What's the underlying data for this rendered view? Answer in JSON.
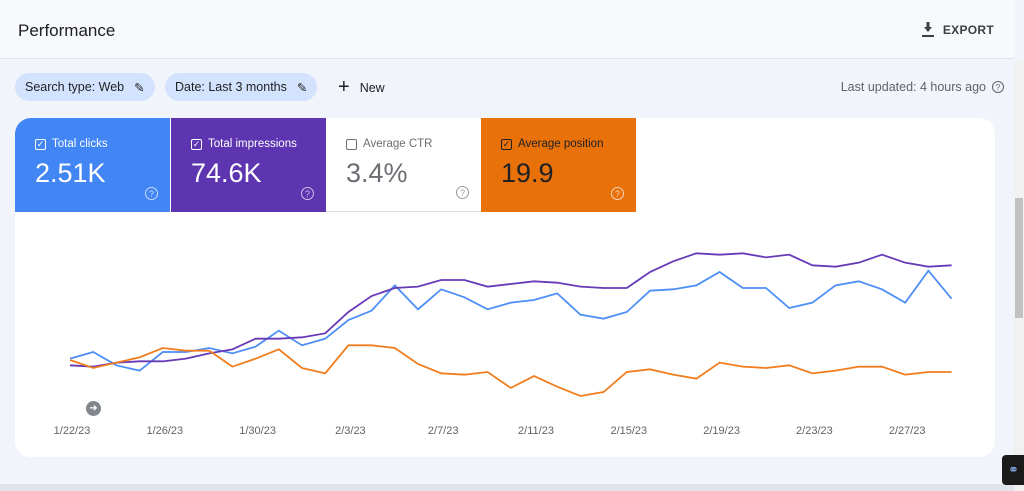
{
  "header": {
    "title": "Performance",
    "export_label": "EXPORT",
    "export_icon": "download-icon"
  },
  "filters": {
    "search_type": "Search type: Web",
    "date": "Date: Last 3 months",
    "new_label": "New",
    "last_updated": "Last updated: 4 hours ago"
  },
  "metrics": [
    {
      "label": "Total clicks",
      "value": "2.51K",
      "checked": true,
      "color": "#4285f4"
    },
    {
      "label": "Total impressions",
      "value": "74.6K",
      "checked": true,
      "color": "#5e35b1"
    },
    {
      "label": "Average CTR",
      "value": "3.4%",
      "checked": false,
      "color": "#ffffff"
    },
    {
      "label": "Average position",
      "value": "19.9",
      "checked": true,
      "color": "#e8710a"
    }
  ],
  "chart_data": {
    "type": "line",
    "x_start": "1/22/23",
    "x_end": "3/1/23",
    "tick_labels": [
      "1/22/23",
      "1/26/23",
      "1/30/23",
      "2/3/23",
      "2/7/23",
      "2/11/23",
      "2/15/23",
      "2/19/23",
      "2/23/23",
      "2/27/23"
    ],
    "y_axis_labels": "none shown (relative scale per series)",
    "grid": false,
    "series": [
      {
        "metric": "Total clicks",
        "color": "#4e8ff7",
        "values": [
          36,
          41,
          31,
          27,
          41,
          41,
          44,
          40,
          45,
          57,
          46,
          51,
          65,
          72,
          91,
          73,
          88,
          82,
          73,
          78,
          80,
          85,
          69,
          66,
          71,
          87,
          88,
          91,
          101,
          89,
          89,
          74,
          78,
          91,
          94,
          88,
          78,
          102,
          81
        ]
      },
      {
        "metric": "Total impressions",
        "color": "#673ab7",
        "values": [
          31,
          30,
          33,
          34,
          34,
          36,
          40,
          43,
          51,
          51,
          52,
          55,
          71,
          83,
          89,
          90,
          95,
          95,
          90,
          92,
          94,
          93,
          90,
          89,
          89,
          101,
          109,
          115,
          114,
          115,
          112,
          114,
          106,
          105,
          108,
          114,
          108,
          105,
          106
        ]
      },
      {
        "metric": "Average position",
        "color": "#f07e1f",
        "values": [
          35,
          29,
          33,
          37,
          44,
          42,
          42,
          30,
          36,
          43,
          29,
          25,
          46,
          46,
          44,
          32,
          25,
          24,
          26,
          14,
          23,
          15,
          8,
          11,
          26,
          28,
          24,
          21,
          33,
          30,
          29,
          31,
          25,
          27,
          30,
          30,
          24,
          26,
          26
        ]
      }
    ]
  }
}
